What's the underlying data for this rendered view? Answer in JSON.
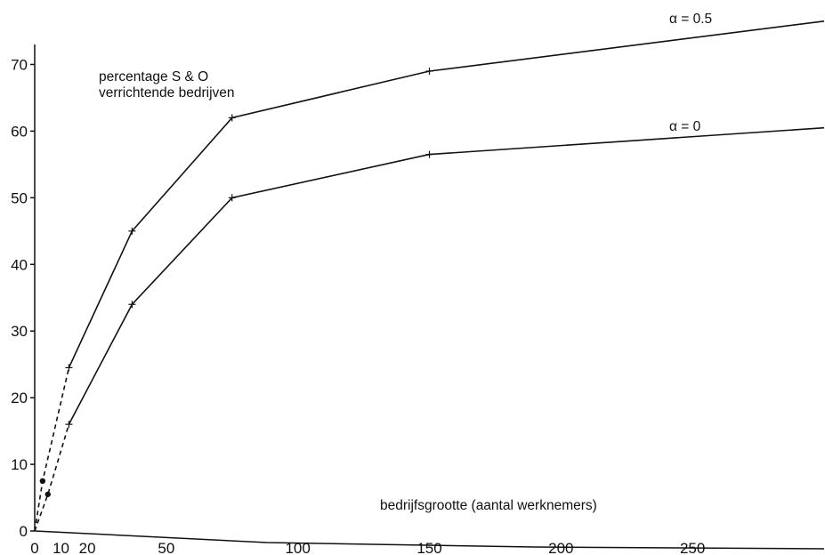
{
  "chart_data": {
    "type": "line",
    "title_lines": [
      "percentage S & O",
      "verrichtende bedrijven"
    ],
    "xlabel": "bedrijfsgrootte (aantal werknemers)",
    "xlim": [
      0,
      300
    ],
    "ylim": [
      0,
      75
    ],
    "x_ticks": [
      0,
      10,
      20,
      50,
      100,
      150,
      200,
      250
    ],
    "y_ticks": [
      0,
      10,
      20,
      30,
      40,
      50,
      60,
      70
    ],
    "series": [
      {
        "name": "α = 0.5",
        "dashed_segment": [
          [
            0,
            0
          ],
          [
            3,
            7.5
          ],
          [
            13,
            24.5
          ]
        ],
        "points": [
          [
            13,
            24.5
          ],
          [
            37,
            45
          ],
          [
            75,
            62
          ],
          [
            150,
            69
          ],
          [
            300,
            76.5
          ]
        ]
      },
      {
        "name": "α = 0",
        "dashed_segment": [
          [
            0,
            0
          ],
          [
            5,
            5.5
          ],
          [
            13,
            16
          ]
        ],
        "points": [
          [
            13,
            16
          ],
          [
            37,
            34
          ],
          [
            75,
            50
          ],
          [
            150,
            56.5
          ],
          [
            300,
            60.5
          ]
        ]
      }
    ]
  }
}
